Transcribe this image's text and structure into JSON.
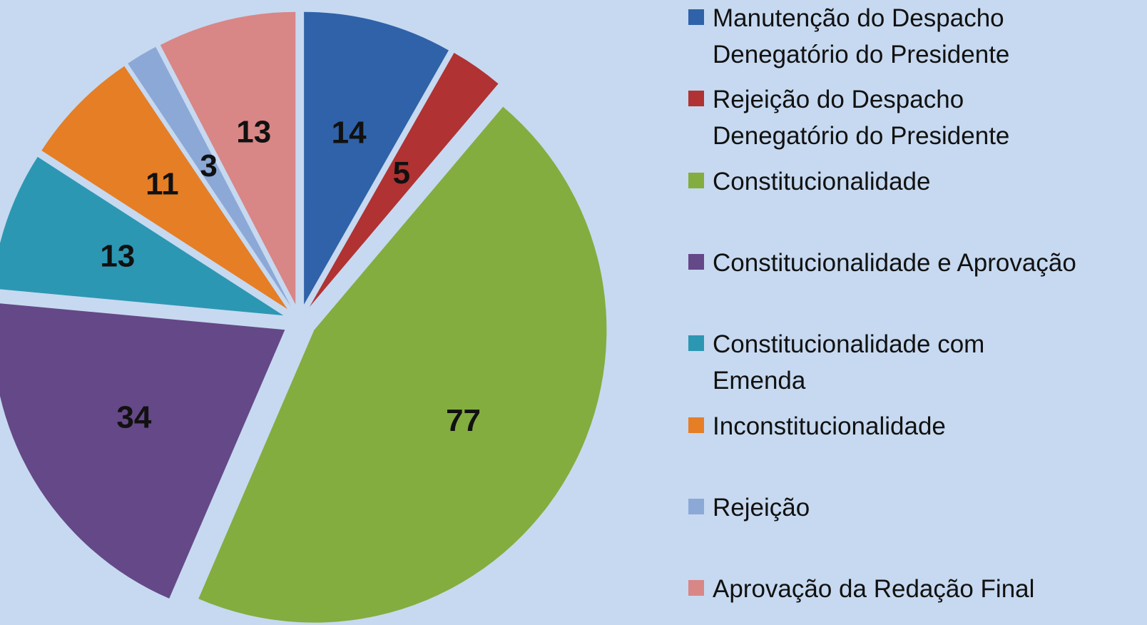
{
  "chart_data": {
    "type": "pie",
    "categories": [
      "Manutenção do Despacho Denegatório do Presidente",
      "Rejeição do Despacho Denegatório do Presidente",
      "Constitucionalidade",
      "Constitucionalidade e Aprovação",
      "Constitucionalidade com Emenda",
      "Inconstitucionalidade",
      "Rejeição",
      "Aprovação da Redação Final"
    ],
    "values": [
      14,
      5,
      77,
      34,
      13,
      11,
      3,
      13
    ],
    "colors": [
      "#2f62a8",
      "#b03232",
      "#83ad3e",
      "#654887",
      "#2c97b3",
      "#e57e25",
      "#8ca8d6",
      "#d98686"
    ],
    "legend": "right"
  }
}
